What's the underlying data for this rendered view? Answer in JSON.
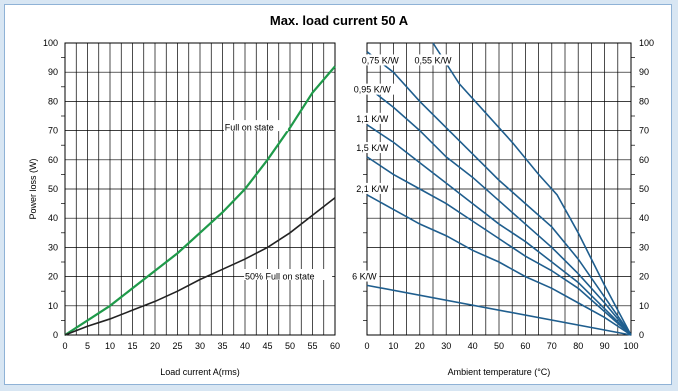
{
  "chart_data": {
    "type": "line",
    "title": "Max. load current 50 A",
    "left": {
      "xlabel": "Load current A(rms)",
      "ylabel": "Power loss (W)",
      "xlim": [
        0,
        60
      ],
      "ylim": [
        0,
        100
      ],
      "xticks": [
        "0",
        "5",
        "10",
        "15",
        "20",
        "25",
        "30",
        "35",
        "40",
        "45",
        "50",
        "55",
        "60"
      ],
      "yticks": [
        "0",
        "10",
        "20",
        "30",
        "40",
        "50",
        "60",
        "70",
        "80",
        "90",
        "100"
      ],
      "series": [
        {
          "name": "Full on state",
          "color": "#1f9a4a",
          "x": [
            0,
            5,
            10,
            15,
            20,
            25,
            30,
            35,
            40,
            45,
            50,
            55,
            60
          ],
          "y": [
            0,
            5,
            10,
            16,
            22,
            28,
            35,
            42,
            50,
            60,
            71,
            83,
            92
          ]
        },
        {
          "name": "50% Full on state",
          "color": "#222222",
          "x": [
            0,
            5,
            10,
            15,
            20,
            25,
            30,
            35,
            40,
            45,
            50,
            55,
            60
          ],
          "y": [
            0,
            3,
            5.5,
            8.5,
            11.5,
            15,
            19,
            22.5,
            26,
            30,
            35,
            41,
            47
          ]
        }
      ]
    },
    "right": {
      "xlabel": "Ambient temperature (°C)",
      "xlim": [
        0,
        100
      ],
      "ylim": [
        0,
        100
      ],
      "xticks": [
        "0",
        "10",
        "20",
        "30",
        "40",
        "50",
        "60",
        "70",
        "80",
        "90",
        "100"
      ],
      "yticks": [
        "0",
        "10",
        "20",
        "30",
        "40",
        "50",
        "60",
        "70",
        "80",
        "90",
        "100"
      ],
      "line_color": "#1f5e8e",
      "series": [
        {
          "name": "0,55 K/W",
          "x": [
            25,
            100
          ],
          "y": [
            100,
            0
          ],
          "curve_x": [
            25,
            35,
            45,
            55,
            65,
            72,
            80,
            90,
            100
          ],
          "curve_y": [
            100,
            86,
            76,
            66,
            55,
            48,
            35,
            17,
            0
          ]
        },
        {
          "name": "0,75 K/W",
          "curve_x": [
            0,
            10,
            20,
            30,
            40,
            50,
            60,
            70,
            80,
            90,
            100
          ],
          "curve_y": [
            97,
            90,
            80,
            71,
            62,
            53,
            45,
            37,
            26,
            13,
            0
          ]
        },
        {
          "name": "0,95 K/W",
          "curve_x": [
            0,
            10,
            20,
            30,
            40,
            50,
            60,
            70,
            80,
            90,
            100
          ],
          "curve_y": [
            85,
            78,
            70,
            61,
            54,
            46,
            38,
            30,
            21,
            11,
            0
          ]
        },
        {
          "name": "1,1 K/W",
          "curve_x": [
            0,
            10,
            20,
            30,
            40,
            50,
            60,
            70,
            80,
            90,
            100
          ],
          "curve_y": [
            72,
            66,
            59,
            52,
            45,
            38,
            32,
            25,
            18,
            9,
            0
          ]
        },
        {
          "name": "1,5 K/W",
          "curve_x": [
            0,
            10,
            20,
            30,
            40,
            50,
            60,
            70,
            80,
            90,
            100
          ],
          "curve_y": [
            61,
            55,
            50,
            45,
            39,
            33,
            27,
            22,
            16,
            8,
            0
          ]
        },
        {
          "name": "2,1 K/W",
          "curve_x": [
            0,
            10,
            20,
            30,
            40,
            50,
            60,
            70,
            80,
            90,
            100
          ],
          "curve_y": [
            48,
            43,
            38,
            34,
            29,
            25,
            20,
            16,
            11,
            6,
            0
          ]
        },
        {
          "name": "6 K/W",
          "curve_x": [
            0,
            100
          ],
          "curve_y": [
            17,
            0
          ]
        }
      ]
    }
  }
}
